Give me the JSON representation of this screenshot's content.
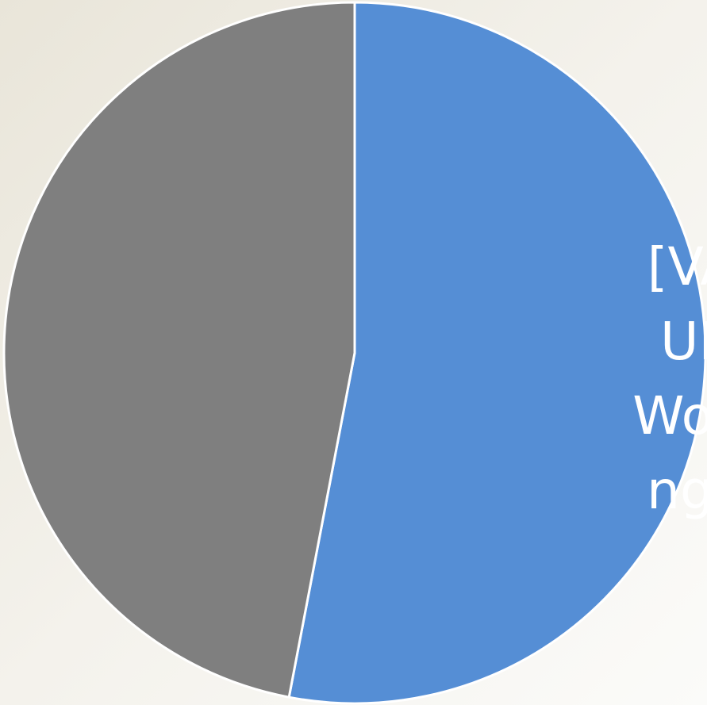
{
  "chart_data": {
    "type": "pie",
    "values": [
      53,
      47
    ],
    "colors": [
      "#558ed5",
      "#7f7f7f"
    ],
    "start_angle": 0,
    "direction": "clockwise",
    "data_labels": [
      [
        "[VAL",
        "UE]",
        "Worki",
        "ng…"
      ],
      null
    ]
  }
}
